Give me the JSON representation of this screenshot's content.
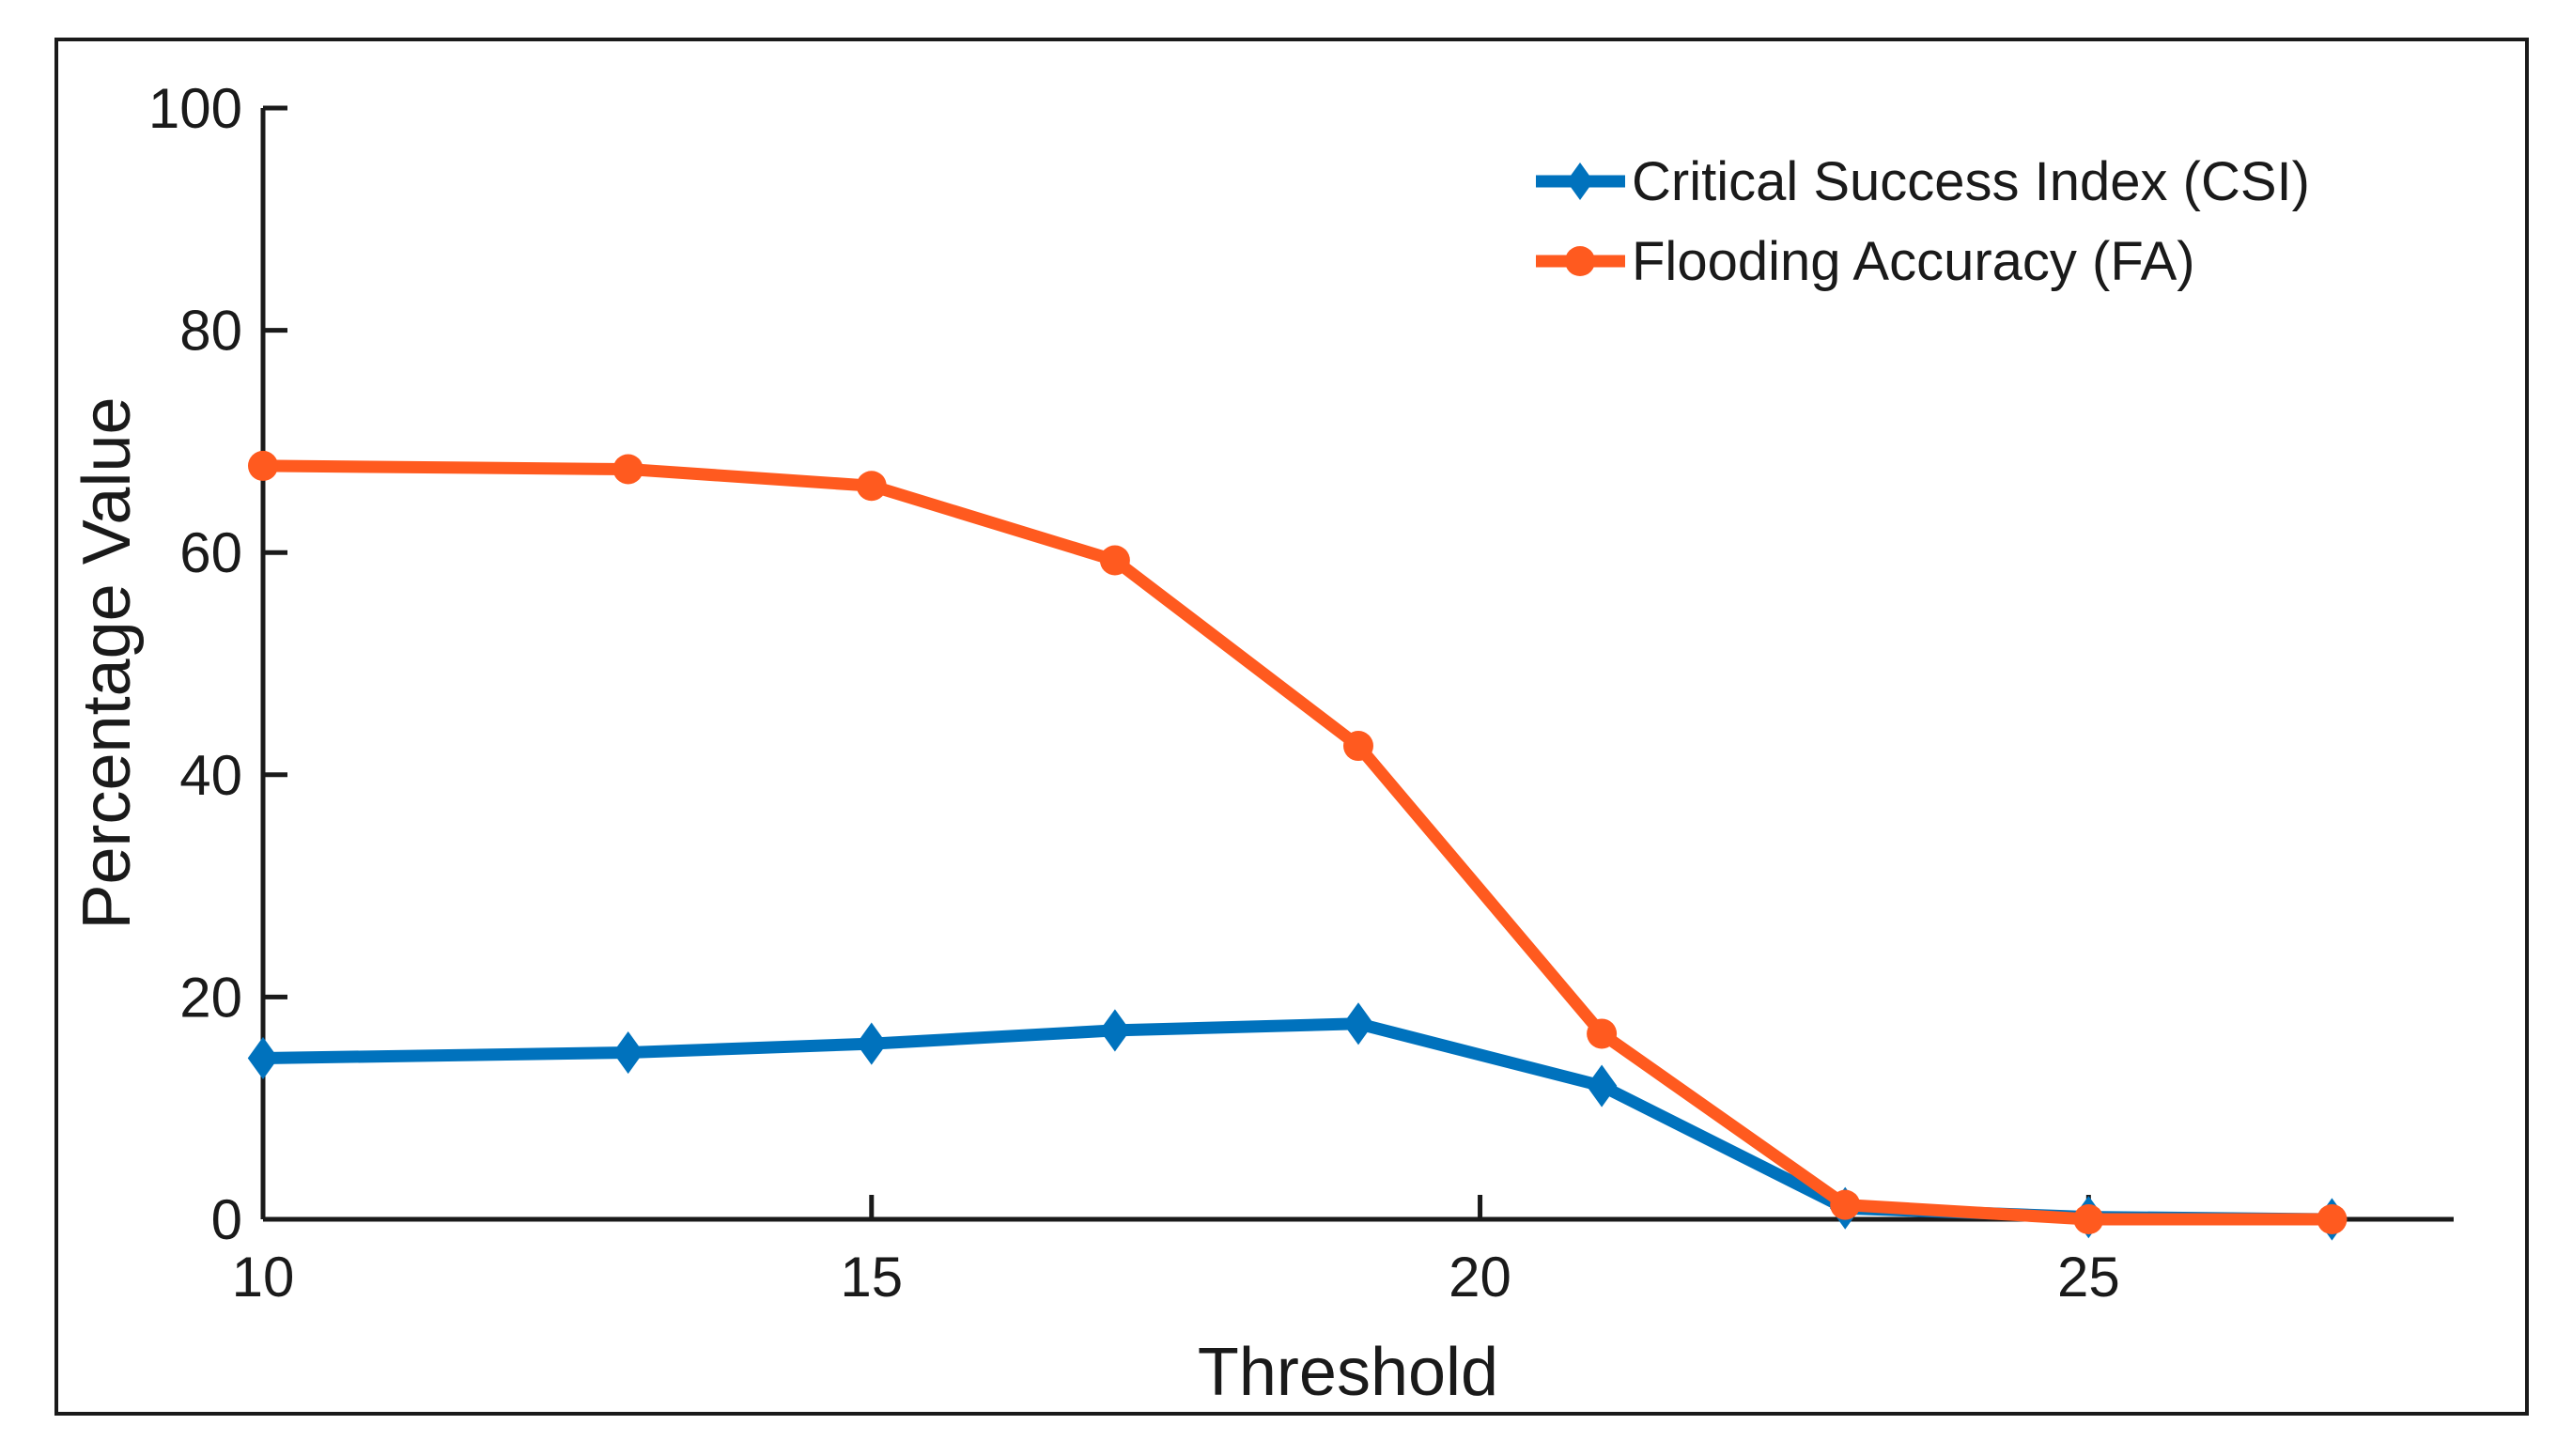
{
  "chart_data": {
    "type": "line",
    "title": "",
    "xlabel": "Threshold",
    "ylabel": "Percentage Value",
    "xlim": [
      10,
      28
    ],
    "ylim": [
      0,
      100
    ],
    "xticks": [
      10,
      15,
      20,
      25
    ],
    "yticks": [
      0,
      20,
      40,
      60,
      80,
      100
    ],
    "x": [
      10,
      13,
      15,
      17,
      19,
      21,
      23,
      25,
      27
    ],
    "series": [
      {
        "name": "Critical Success Index (CSI)",
        "values": [
          14.5,
          15,
          15.8,
          17,
          17.6,
          12,
          1,
          0.2,
          0
        ],
        "color": "#0072BD",
        "marker": "diamond"
      },
      {
        "name": "Flooding Accuracy (FA)",
        "values": [
          67.8,
          67.5,
          66,
          59.3,
          42.6,
          16.7,
          1.3,
          0,
          0
        ],
        "color": "#FF5A1F",
        "marker": "circle"
      }
    ],
    "legend_position": "top-right",
    "grid": false
  }
}
